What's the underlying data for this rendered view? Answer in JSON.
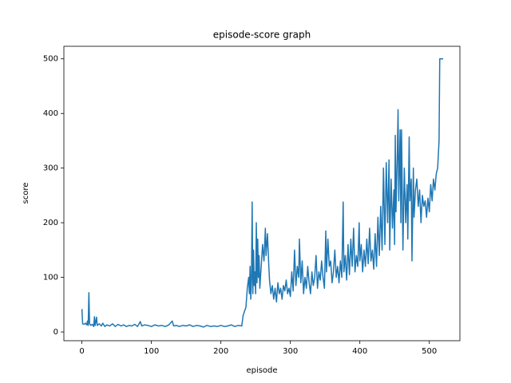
{
  "chart_data": {
    "type": "line",
    "title": "episode-score graph",
    "x_label": "episode",
    "y_label": "score",
    "xlim": [
      -26,
      544
    ],
    "ylim": [
      -16,
      523
    ],
    "xticks": [
      0,
      100,
      200,
      300,
      400,
      500
    ],
    "yticks": [
      0,
      100,
      200,
      300,
      400,
      500
    ],
    "grid": false,
    "color": "#1f77b4",
    "x": [
      0,
      1,
      3,
      5,
      7,
      8,
      9,
      10,
      11,
      13,
      15,
      17,
      18,
      19,
      21,
      22,
      25,
      28,
      30,
      33,
      36,
      40,
      44,
      48,
      52,
      56,
      60,
      64,
      68,
      72,
      76,
      80,
      84,
      86,
      90,
      95,
      100,
      105,
      110,
      115,
      120,
      125,
      130,
      132,
      136,
      140,
      145,
      150,
      155,
      160,
      165,
      170,
      175,
      180,
      185,
      190,
      195,
      200,
      205,
      210,
      215,
      220,
      225,
      230,
      232,
      234,
      236,
      238,
      240,
      241,
      242,
      243,
      244,
      245,
      246,
      247,
      248,
      249,
      250,
      251,
      252,
      253,
      254,
      255,
      256,
      258,
      260,
      262,
      264,
      265,
      267,
      269,
      270,
      272,
      274,
      276,
      278,
      280,
      282,
      284,
      286,
      288,
      290,
      292,
      294,
      296,
      298,
      300,
      302,
      304,
      306,
      308,
      310,
      312,
      313,
      315,
      317,
      319,
      321,
      323,
      325,
      327,
      329,
      331,
      333,
      335,
      337,
      339,
      341,
      343,
      345,
      347,
      349,
      351,
      352,
      354,
      356,
      358,
      360,
      362,
      364,
      366,
      368,
      370,
      372,
      374,
      376,
      377,
      379,
      381,
      383,
      385,
      387,
      389,
      391,
      393,
      395,
      397,
      399,
      400,
      402,
      404,
      406,
      408,
      410,
      412,
      414,
      416,
      418,
      420,
      422,
      424,
      426,
      428,
      430,
      432,
      434,
      436,
      438,
      440,
      442,
      443,
      445,
      447,
      449,
      450,
      451,
      452,
      454,
      455,
      456,
      458,
      459,
      460,
      462,
      464,
      466,
      468,
      469,
      471,
      472,
      474,
      475,
      477,
      478,
      480,
      482,
      484,
      486,
      488,
      490,
      492,
      494,
      496,
      498,
      500,
      502,
      504,
      506,
      508,
      510,
      512,
      514,
      515,
      516,
      518,
      520
    ],
    "values": [
      42,
      15,
      14,
      16,
      13,
      20,
      12,
      72,
      15,
      12,
      14,
      10,
      28,
      12,
      27,
      12,
      15,
      11,
      16,
      10,
      13,
      11,
      15,
      10,
      14,
      11,
      13,
      10,
      12,
      11,
      14,
      10,
      19,
      11,
      13,
      12,
      10,
      13,
      11,
      12,
      10,
      13,
      20,
      11,
      12,
      10,
      12,
      11,
      13,
      10,
      12,
      11,
      9,
      12,
      10,
      11,
      10,
      12,
      10,
      11,
      13,
      10,
      12,
      11,
      30,
      38,
      45,
      80,
      100,
      70,
      120,
      60,
      95,
      238,
      70,
      150,
      85,
      110,
      70,
      200,
      90,
      170,
      100,
      140,
      80,
      120,
      160,
      130,
      190,
      140,
      180,
      120,
      95,
      70,
      85,
      60,
      80,
      55,
      90,
      70,
      80,
      60,
      85,
      75,
      95,
      70,
      80,
      65,
      110,
      75,
      150,
      85,
      120,
      100,
      170,
      90,
      130,
      70,
      100,
      80,
      120,
      90,
      70,
      110,
      85,
      100,
      140,
      80,
      110,
      95,
      130,
      100,
      80,
      185,
      110,
      170,
      120,
      130,
      90,
      110,
      150,
      100,
      120,
      90,
      130,
      100,
      238,
      110,
      140,
      95,
      160,
      105,
      170,
      120,
      190,
      110,
      140,
      120,
      200,
      130,
      160,
      110,
      150,
      120,
      170,
      125,
      190,
      130,
      150,
      115,
      180,
      120,
      210,
      140,
      230,
      150,
      300,
      160,
      310,
      200,
      315,
      150,
      280,
      190,
      260,
      160,
      360,
      220,
      330,
      407,
      240,
      370,
      200,
      370,
      150,
      300,
      200,
      270,
      170,
      357,
      240,
      280,
      130,
      300,
      210,
      260,
      280,
      230,
      260,
      200,
      250,
      230,
      240,
      210,
      245,
      220,
      270,
      240,
      280,
      260,
      290,
      300,
      350,
      500,
      500,
      500,
      500
    ]
  }
}
